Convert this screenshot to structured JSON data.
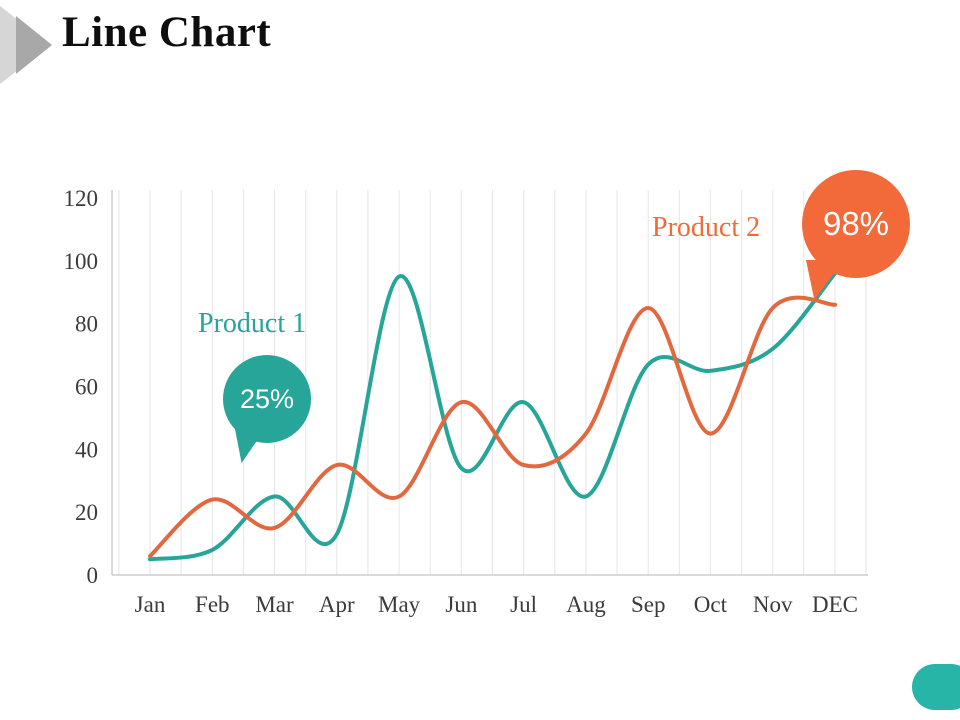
{
  "slide": {
    "title": "Line Chart"
  },
  "chart_data": {
    "type": "line",
    "categories": [
      "Jan",
      "Feb",
      "Mar",
      "Apr",
      "May",
      "Jun",
      "Jul",
      "Aug",
      "Sep",
      "Oct",
      "Nov",
      "DEC"
    ],
    "series": [
      {
        "name": "Product 1",
        "color": "#27A598",
        "values": [
          5,
          8,
          25,
          13,
          95,
          34,
          55,
          25,
          67,
          65,
          72,
          96
        ]
      },
      {
        "name": "Product 2",
        "color": "#E2693F",
        "values": [
          6,
          24,
          15,
          35,
          25,
          55,
          35,
          45,
          85,
          45,
          85,
          86
        ]
      }
    ],
    "ylim": [
      0,
      120
    ],
    "yticks": [
      0,
      20,
      40,
      60,
      80,
      100,
      120
    ],
    "grid": "vertical",
    "legend_position": "inline-labels"
  },
  "callouts": {
    "product1": {
      "label": "Product 1",
      "value": "25%",
      "color": "#27A598"
    },
    "product2": {
      "label": "Product 2",
      "value": "98%",
      "color": "#F2693A"
    }
  },
  "decorations": {
    "corner_color": "#27B5A8",
    "arrow_light": "#d6d6d6",
    "arrow_dark": "#a8a8a8"
  }
}
